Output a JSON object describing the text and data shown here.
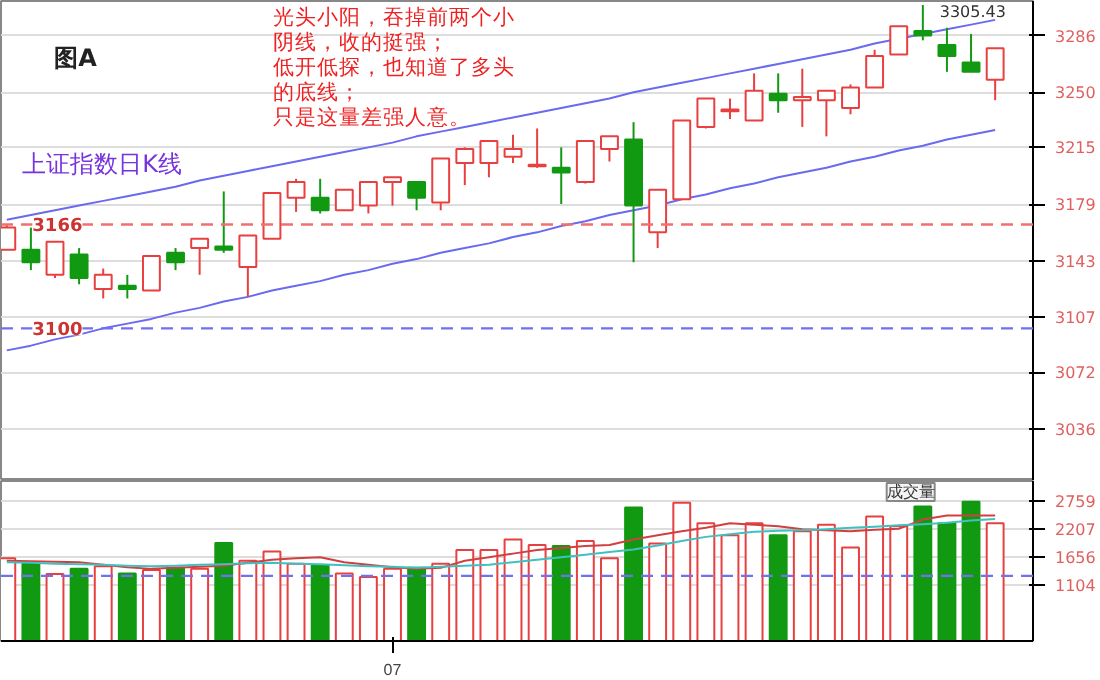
{
  "chart_data": [
    {
      "type": "candlestick",
      "categories": [
        null,
        null,
        null,
        null,
        null,
        null,
        null,
        null,
        null,
        null,
        null,
        null,
        null,
        null,
        null,
        null,
        null,
        null,
        null,
        null,
        null,
        null,
        null,
        null,
        null,
        null,
        null,
        null,
        null,
        null,
        null,
        null,
        null,
        null,
        null,
        null,
        null,
        null,
        null,
        null,
        null,
        null
      ],
      "ohlc": [
        [
          3150,
          3166,
          3150,
          3164
        ],
        [
          3150,
          3164,
          3137,
          3142
        ],
        [
          3134,
          3155,
          3132,
          3155
        ],
        [
          3147,
          3151,
          3128,
          3132
        ],
        [
          3125,
          3138,
          3119,
          3134
        ],
        [
          3127,
          3134,
          3119,
          3125
        ],
        [
          3124,
          3146,
          3124,
          3146
        ],
        [
          3148,
          3151,
          3137,
          3142
        ],
        [
          3151,
          3157,
          3134,
          3157
        ],
        [
          3152,
          3187,
          3148,
          3150
        ],
        [
          3139,
          3159,
          3120,
          3159
        ],
        [
          3157,
          3186,
          3157,
          3186
        ],
        [
          3183,
          3195,
          3174,
          3193
        ],
        [
          3183,
          3195,
          3173,
          3175
        ],
        [
          3175,
          3188,
          3175,
          3188
        ],
        [
          3178,
          3193,
          3173,
          3193
        ],
        [
          3193,
          3196,
          3178,
          3196
        ],
        [
          3193,
          3193,
          3175,
          3183
        ],
        [
          3180,
          3208,
          3175,
          3208
        ],
        [
          3205,
          3215,
          3191,
          3214
        ],
        [
          3205,
          3219,
          3196,
          3219
        ],
        [
          3209,
          3223,
          3205,
          3214
        ],
        [
          3203,
          3227,
          3202,
          3204
        ],
        [
          3202,
          3215,
          3179,
          3199
        ],
        [
          3193,
          3219,
          3192,
          3219
        ],
        [
          3214,
          3222,
          3206,
          3222
        ],
        [
          3220,
          3231,
          3142,
          3178
        ],
        [
          3161,
          3188,
          3151,
          3188
        ],
        [
          3182,
          3232,
          3182,
          3232
        ],
        [
          3228,
          3246,
          3227,
          3246
        ],
        [
          3238,
          3246,
          3233,
          3239
        ],
        [
          3232,
          3262,
          3232,
          3251
        ],
        [
          3249,
          3262,
          3237,
          3245
        ],
        [
          3245,
          3265,
          3228,
          3247
        ],
        [
          3245,
          3251,
          3222,
          3251
        ],
        [
          3240,
          3255,
          3236,
          3253
        ],
        [
          3253,
          3277,
          3253,
          3273
        ],
        [
          3274,
          3292,
          3274,
          3292
        ],
        [
          3289,
          3305.43,
          3283,
          3286
        ],
        [
          3280,
          3291,
          3263,
          3273
        ],
        [
          3269,
          3287,
          3263,
          3263
        ],
        [
          3258,
          3278,
          3245,
          3278
        ]
      ],
      "ylim": [
        3003,
        3308
      ],
      "yticks": [
        3036,
        3072,
        3107,
        3143,
        3179,
        3215,
        3250,
        3286
      ],
      "grid": "y",
      "tick_labels": "y",
      "series": [
        {
          "type": "line",
          "color": "#6a6af0",
          "values": [
            3169,
            3172,
            3175,
            3178,
            3181,
            3184,
            3187,
            3190,
            3194,
            3197,
            3200,
            3203,
            3206,
            3209,
            3212,
            3215,
            3218,
            3222,
            3225,
            3228,
            3231,
            3234,
            3237,
            3240,
            3243,
            3246,
            3250,
            3253,
            3256,
            3259,
            3262,
            3265,
            3268,
            3271,
            3274,
            3277,
            3281,
            3284,
            3287,
            3290,
            3293,
            3296
          ]
        },
        {
          "type": "line",
          "color": "#6a6af0",
          "values": [
            3086,
            3089,
            3093,
            3096,
            3100,
            3103,
            3106,
            3110,
            3113,
            3117,
            3120,
            3124,
            3127,
            3130,
            3134,
            3137,
            3141,
            3144,
            3148,
            3151,
            3154,
            3158,
            3161,
            3165,
            3168,
            3172,
            3175,
            3178,
            3182,
            3185,
            3189,
            3192,
            3196,
            3199,
            3202,
            3206,
            3209,
            3213,
            3216,
            3220,
            3223,
            3226
          ]
        }
      ],
      "ref_lines": [
        {
          "axis": "y",
          "value": 3166,
          "label": "3166",
          "color": "#f07070",
          "line_style": "dashed"
        },
        {
          "axis": "y",
          "value": 3100,
          "label": "3100",
          "color": "#7070f0",
          "line_style": "dashed"
        }
      ],
      "annotations": [
        "图A",
        "上证指数日K线",
        "光头小阳，吞掉前两个小",
        "阴线，收的挺强；",
        "低开低探，也知道了多头",
        "的底线；",
        "只是这量差强人意。",
        "3305.43"
      ]
    },
    {
      "type": "bar",
      "categories": [
        null,
        null,
        null,
        null,
        null,
        null,
        null,
        null,
        null,
        null,
        null,
        null,
        null,
        null,
        null,
        null,
        "07",
        null,
        null,
        null,
        null,
        null,
        null,
        null,
        null,
        null,
        null,
        null,
        null,
        null,
        null,
        null,
        null,
        null,
        null,
        null,
        null,
        null,
        null,
        null,
        null,
        null
      ],
      "ylim": [
        0,
        3150
      ],
      "yticks": [
        1104,
        1656,
        2207,
        2759
      ],
      "grid": "y",
      "series": [
        {
          "type": "bar",
          "values": [
            1630,
            1520,
            1320,
            1420,
            1470,
            1330,
            1400,
            1440,
            1420,
            1930,
            1580,
            1760,
            1520,
            1490,
            1330,
            1260,
            1420,
            1440,
            1520,
            1790,
            1790,
            2000,
            1890,
            1870,
            1970,
            1630,
            2630,
            1920,
            2720,
            2320,
            2080,
            2320,
            2080,
            2160,
            2290,
            1840,
            2450,
            2260,
            2650,
            2320,
            2740,
            2320
          ],
          "colors": [
            "#e84040",
            "#119911",
            "#e84040",
            "#119911",
            "#e84040",
            "#119911",
            "#e84040",
            "#119911",
            "#e84040",
            "#119911",
            "#e84040",
            "#e84040",
            "#e84040",
            "#119911",
            "#e84040",
            "#e84040",
            "#e84040",
            "#119911",
            "#e84040",
            "#e84040",
            "#e84040",
            "#e84040",
            "#e84040",
            "#119911",
            "#e84040",
            "#e84040",
            "#119911",
            "#e84040",
            "#e84040",
            "#e84040",
            "#e84040",
            "#e84040",
            "#119911",
            "#e84040",
            "#e84040",
            "#e84040",
            "#e84040",
            "#e84040",
            "#119911",
            "#119911",
            "#119911",
            "#e84040"
          ]
        },
        {
          "type": "line",
          "color": "#d04040",
          "values": [
            1580,
            1570,
            1560,
            1550,
            1500,
            1450,
            1420,
            1440,
            1460,
            1480,
            1540,
            1600,
            1630,
            1650,
            1550,
            1500,
            1450,
            1420,
            1440,
            1580,
            1650,
            1720,
            1790,
            1830,
            1870,
            1890,
            2000,
            2080,
            2160,
            2230,
            2320,
            2290,
            2260,
            2200,
            2180,
            2160,
            2190,
            2210,
            2390,
            2470,
            2470,
            2470
          ]
        },
        {
          "type": "line",
          "color": "#40c0c0",
          "values": [
            1550,
            1540,
            1520,
            1510,
            1500,
            1480,
            1470,
            1480,
            1500,
            1510,
            1530,
            1540,
            1520,
            1510,
            1490,
            1470,
            1460,
            1440,
            1460,
            1480,
            1500,
            1550,
            1600,
            1650,
            1700,
            1750,
            1800,
            1880,
            1970,
            2050,
            2100,
            2150,
            2170,
            2180,
            2200,
            2230,
            2250,
            2280,
            2300,
            2330,
            2370,
            2400
          ]
        }
      ],
      "ref_lines": [
        {
          "axis": "y",
          "value": 1282,
          "color": "#7070f0",
          "line_style": "dashed"
        }
      ],
      "annotations": [
        "成交量"
      ]
    }
  ]
}
